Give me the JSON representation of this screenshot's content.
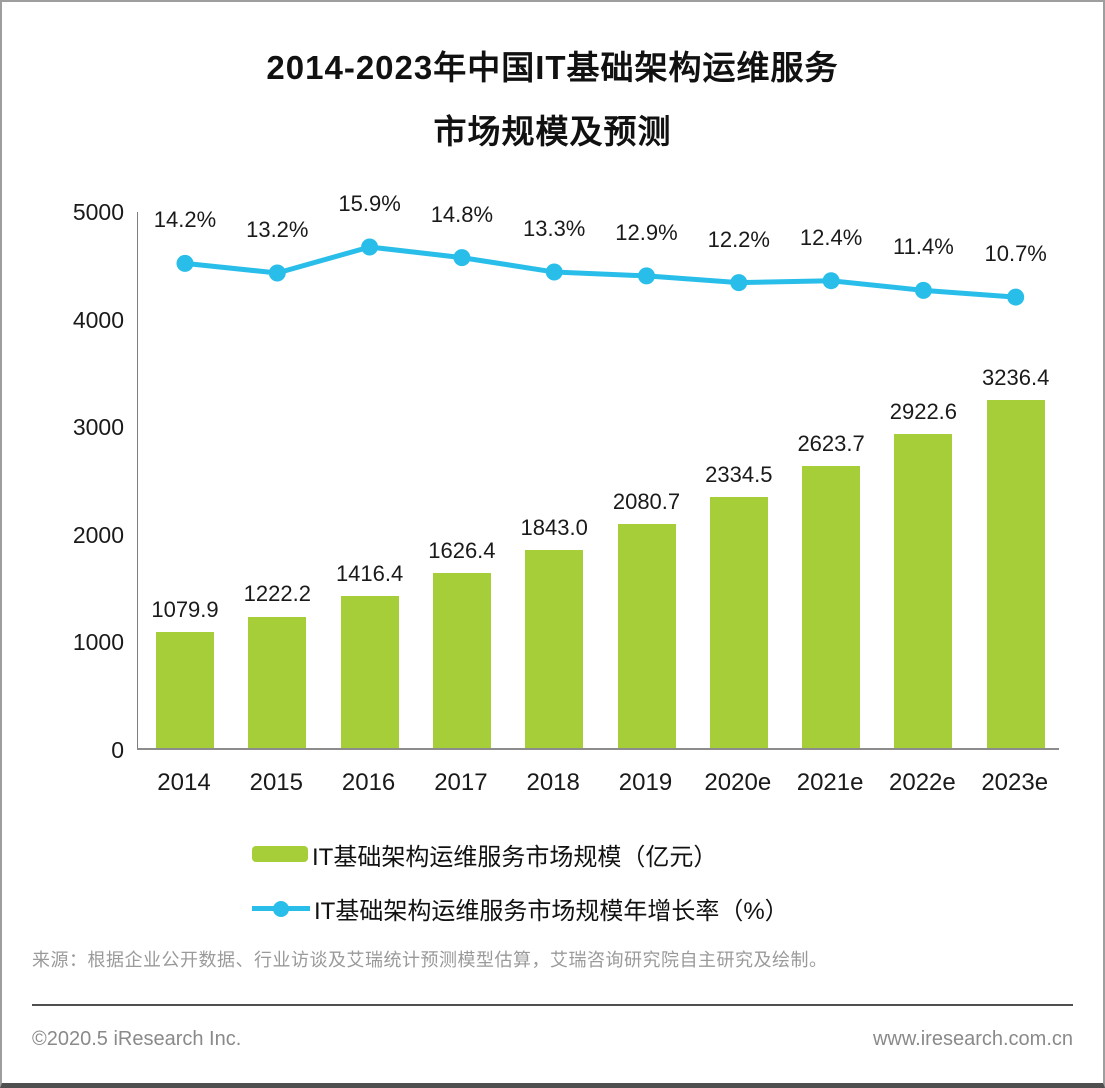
{
  "title": {
    "line1": "2014-2023年中国IT基础架构运维服务",
    "line2": "市场规模及预测"
  },
  "chart_data": {
    "type": "bar",
    "categories": [
      "2014",
      "2015",
      "2016",
      "2017",
      "2018",
      "2019",
      "2020e",
      "2021e",
      "2022e",
      "2023e"
    ],
    "series": [
      {
        "name": "IT基础架构运维服务市场规模（亿元）",
        "type": "bar",
        "color": "#A5CE39",
        "values": [
          1079.9,
          1222.2,
          1416.4,
          1626.4,
          1843.0,
          2080.7,
          2334.5,
          2623.7,
          2922.6,
          3236.4
        ],
        "labels": [
          "1079.9",
          "1222.2",
          "1416.4",
          "1626.4",
          "1843.0",
          "2080.7",
          "2334.5",
          "2623.7",
          "2922.6",
          "3236.4"
        ]
      },
      {
        "name": "IT基础架构运维服务市场规模年增长率（%）",
        "type": "line",
        "color": "#29BEE9",
        "values": [
          14.2,
          13.2,
          15.9,
          14.8,
          13.3,
          12.9,
          12.2,
          12.4,
          11.4,
          10.7
        ],
        "labels": [
          "14.2%",
          "13.2%",
          "15.9%",
          "14.8%",
          "13.3%",
          "12.9%",
          "12.2%",
          "12.4%",
          "11.4%",
          "10.7%"
        ]
      }
    ],
    "ylabel": "",
    "xlabel": "",
    "y_axis": {
      "min": 0,
      "max": 5000,
      "ticks": [
        "0",
        "1000",
        "2000",
        "3000",
        "4000",
        "5000"
      ]
    },
    "grid": false,
    "legend_position": "bottom"
  },
  "source_note": "来源：根据企业公开数据、行业访谈及艾瑞统计预测模型估算，艾瑞咨询研究院自主研究及绘制。",
  "footer": {
    "left": "©2020.5 iResearch Inc.",
    "right": "www.iresearch.com.cn"
  }
}
